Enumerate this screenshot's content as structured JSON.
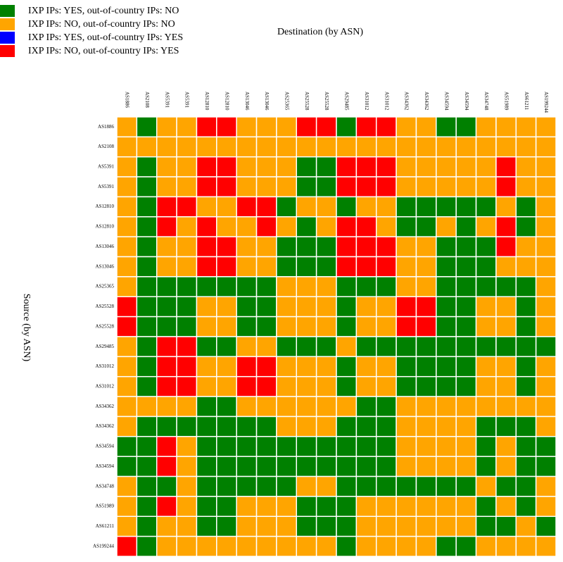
{
  "chart_data": {
    "type": "heatmap",
    "title": "Destination (by ASN)",
    "y_label": "Source (by ASN)",
    "legend": [
      {
        "label": "IXP IPs: YES, out-of-country IPs: NO",
        "color": "#008000"
      },
      {
        "label": "IXP IPs: NO, out-of-country IPs: NO",
        "color": "#ffa500"
      },
      {
        "label": "IXP IPs: YES, out-of-country IPs: YES",
        "color": "#0000ff"
      },
      {
        "label": "IXP IPs: NO, out-of-country IPs: YES",
        "color": "#ff0000"
      }
    ],
    "columns": [
      "AS1886",
      "AS2108",
      "AS5391",
      "AS5391",
      "AS12810",
      "AS12810",
      "AS13046",
      "AS13046",
      "AS25365",
      "AS25528",
      "AS25528",
      "AS29485",
      "AS31012",
      "AS31012",
      "AS34362",
      "AS34362",
      "AS34594",
      "AS34594",
      "AS34748",
      "AS51989",
      "AS61211",
      "AS199244"
    ],
    "rows": [
      "AS1886",
      "AS2108",
      "AS5391",
      "AS5391",
      "AS12810",
      "AS12810",
      "AS13046",
      "AS13046",
      "AS25365",
      "AS25528",
      "AS25528",
      "AS29485",
      "AS31012",
      "AS31012",
      "AS34362",
      "AS34362",
      "AS34594",
      "AS34594",
      "AS34748",
      "AS51989",
      "AS61211",
      "AS199244"
    ],
    "cells": [
      [
        1,
        0,
        1,
        1,
        3,
        3,
        1,
        1,
        1,
        3,
        3,
        0,
        3,
        3,
        1,
        1,
        0,
        0,
        1,
        1,
        1,
        1
      ],
      [
        1,
        1,
        1,
        1,
        1,
        1,
        1,
        1,
        1,
        1,
        1,
        1,
        1,
        1,
        1,
        1,
        1,
        1,
        1,
        1,
        1,
        1
      ],
      [
        1,
        0,
        1,
        1,
        3,
        3,
        1,
        1,
        1,
        0,
        0,
        3,
        3,
        3,
        1,
        1,
        1,
        1,
        1,
        3,
        1,
        1
      ],
      [
        1,
        0,
        1,
        1,
        3,
        3,
        1,
        1,
        1,
        0,
        0,
        3,
        3,
        3,
        1,
        1,
        1,
        1,
        1,
        3,
        1,
        1
      ],
      [
        1,
        0,
        3,
        3,
        1,
        1,
        3,
        3,
        0,
        1,
        1,
        0,
        1,
        1,
        0,
        0,
        0,
        0,
        0,
        1,
        0,
        1
      ],
      [
        1,
        0,
        3,
        1,
        3,
        1,
        1,
        3,
        1,
        0,
        1,
        3,
        3,
        1,
        0,
        0,
        1,
        0,
        1,
        3,
        0,
        1
      ],
      [
        1,
        0,
        1,
        1,
        3,
        3,
        1,
        1,
        0,
        0,
        0,
        3,
        3,
        3,
        1,
        1,
        0,
        0,
        0,
        3,
        1,
        1
      ],
      [
        1,
        0,
        1,
        1,
        3,
        3,
        1,
        1,
        0,
        0,
        0,
        3,
        3,
        3,
        1,
        1,
        0,
        0,
        0,
        1,
        1,
        1
      ],
      [
        1,
        0,
        0,
        0,
        0,
        0,
        0,
        0,
        1,
        1,
        1,
        0,
        0,
        0,
        1,
        1,
        0,
        0,
        0,
        0,
        0,
        1
      ],
      [
        3,
        0,
        0,
        0,
        1,
        1,
        0,
        0,
        1,
        1,
        1,
        0,
        1,
        1,
        3,
        3,
        0,
        0,
        1,
        1,
        0,
        1
      ],
      [
        3,
        0,
        0,
        0,
        1,
        1,
        0,
        0,
        1,
        1,
        1,
        0,
        1,
        1,
        3,
        3,
        0,
        0,
        1,
        1,
        0,
        1
      ],
      [
        1,
        0,
        3,
        3,
        0,
        0,
        1,
        1,
        0,
        0,
        0,
        1,
        0,
        0,
        0,
        0,
        0,
        0,
        0,
        0,
        0,
        0
      ],
      [
        1,
        0,
        3,
        3,
        1,
        1,
        3,
        3,
        1,
        1,
        1,
        0,
        1,
        1,
        0,
        0,
        0,
        0,
        1,
        1,
        0,
        1
      ],
      [
        1,
        0,
        3,
        3,
        1,
        1,
        3,
        3,
        1,
        1,
        1,
        0,
        1,
        1,
        0,
        0,
        0,
        0,
        1,
        1,
        0,
        1
      ],
      [
        1,
        1,
        1,
        1,
        0,
        0,
        1,
        1,
        1,
        1,
        1,
        1,
        0,
        0,
        1,
        1,
        1,
        1,
        1,
        1,
        1,
        1
      ],
      [
        1,
        0,
        0,
        0,
        0,
        0,
        0,
        0,
        1,
        1,
        1,
        0,
        0,
        0,
        1,
        1,
        1,
        1,
        0,
        0,
        0,
        1
      ],
      [
        0,
        0,
        3,
        1,
        0,
        0,
        0,
        0,
        0,
        0,
        0,
        0,
        0,
        0,
        1,
        1,
        1,
        1,
        0,
        1,
        0,
        0
      ],
      [
        0,
        0,
        3,
        1,
        0,
        0,
        0,
        0,
        0,
        0,
        0,
        0,
        0,
        0,
        1,
        1,
        1,
        1,
        0,
        1,
        0,
        0
      ],
      [
        1,
        0,
        0,
        1,
        0,
        0,
        0,
        0,
        0,
        1,
        1,
        0,
        0,
        0,
        0,
        0,
        0,
        0,
        1,
        0,
        0,
        1
      ],
      [
        1,
        0,
        3,
        1,
        0,
        0,
        1,
        1,
        1,
        0,
        0,
        0,
        1,
        1,
        1,
        1,
        1,
        1,
        0,
        1,
        0,
        1
      ],
      [
        1,
        0,
        1,
        1,
        0,
        0,
        1,
        1,
        1,
        0,
        0,
        0,
        1,
        1,
        1,
        1,
        1,
        1,
        0,
        0,
        1,
        0
      ],
      [
        3,
        0,
        1,
        1,
        1,
        1,
        1,
        1,
        1,
        1,
        1,
        0,
        1,
        1,
        1,
        1,
        0,
        0,
        1,
        1,
        1,
        1
      ]
    ]
  }
}
